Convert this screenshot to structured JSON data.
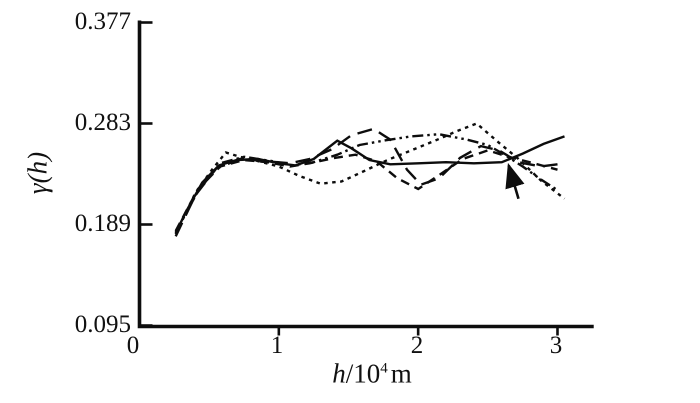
{
  "figure": {
    "background": "#ffffff",
    "line_color": "#0d0d0d"
  },
  "chart_data": {
    "type": "line",
    "title": "",
    "xlabel": "h/10⁴ m",
    "ylabel": "γ(h)",
    "xlabel_parts": {
      "symbol": "h",
      "divider": "/10",
      "exponent": "4",
      "unit": "m"
    },
    "xlim": [
      0,
      3.26
    ],
    "ylim": [
      0.095,
      0.377
    ],
    "grid": false,
    "legend": "none",
    "line_color": "#0d0d0d",
    "yticks": [
      {
        "label": "0.377",
        "value": 0.377
      },
      {
        "label": "0.283",
        "value": 0.283
      },
      {
        "label": "0.189",
        "value": 0.189
      },
      {
        "label": "0.095",
        "value": 0.095
      }
    ],
    "xticks": [
      {
        "label": "0",
        "value": 0
      },
      {
        "label": "1",
        "value": 1
      },
      {
        "label": "2",
        "value": 2
      },
      {
        "label": "3",
        "value": 3
      }
    ],
    "series": [
      {
        "name": "solid",
        "dash": "solid",
        "points": [
          [
            0.26,
            0.181
          ],
          [
            0.33,
            0.2
          ],
          [
            0.45,
            0.228
          ],
          [
            0.57,
            0.244
          ],
          [
            0.7,
            0.249
          ],
          [
            0.85,
            0.25
          ],
          [
            1.0,
            0.246
          ],
          [
            1.12,
            0.244
          ],
          [
            1.25,
            0.25
          ],
          [
            1.42,
            0.267
          ],
          [
            1.52,
            0.26
          ],
          [
            1.65,
            0.249
          ],
          [
            1.8,
            0.245
          ],
          [
            2.0,
            0.246
          ],
          [
            2.2,
            0.247
          ],
          [
            2.4,
            0.246
          ],
          [
            2.6,
            0.247
          ],
          [
            2.75,
            0.255
          ],
          [
            2.9,
            0.264
          ],
          [
            3.05,
            0.271
          ]
        ]
      },
      {
        "name": "long-dash",
        "dash": "long-dash",
        "points": [
          [
            0.26,
            0.178
          ],
          [
            0.4,
            0.216
          ],
          [
            0.55,
            0.241
          ],
          [
            0.72,
            0.25
          ],
          [
            0.9,
            0.248
          ],
          [
            1.08,
            0.246
          ],
          [
            1.22,
            0.25
          ],
          [
            1.38,
            0.259
          ],
          [
            1.52,
            0.272
          ],
          [
            1.68,
            0.278
          ],
          [
            1.8,
            0.268
          ],
          [
            1.92,
            0.24
          ],
          [
            2.02,
            0.226
          ],
          [
            2.15,
            0.232
          ],
          [
            2.3,
            0.251
          ],
          [
            2.45,
            0.262
          ],
          [
            2.58,
            0.258
          ],
          [
            2.72,
            0.247
          ],
          [
            2.88,
            0.243
          ],
          [
            3.0,
            0.245
          ]
        ]
      },
      {
        "name": "medium-dash",
        "dash": "medium-dash",
        "points": [
          [
            0.26,
            0.183
          ],
          [
            0.42,
            0.222
          ],
          [
            0.58,
            0.243
          ],
          [
            0.75,
            0.249
          ],
          [
            0.92,
            0.247
          ],
          [
            1.08,
            0.243
          ],
          [
            1.22,
            0.246
          ],
          [
            1.4,
            0.251
          ],
          [
            1.55,
            0.254
          ],
          [
            1.7,
            0.248
          ],
          [
            1.85,
            0.232
          ],
          [
            2.0,
            0.222
          ],
          [
            2.15,
            0.235
          ],
          [
            2.32,
            0.25
          ],
          [
            2.5,
            0.258
          ],
          [
            2.65,
            0.252
          ],
          [
            2.8,
            0.247
          ],
          [
            3.0,
            0.24
          ]
        ]
      },
      {
        "name": "short-dash",
        "dash": "short-dash",
        "points": [
          [
            0.26,
            0.18
          ],
          [
            0.4,
            0.218
          ],
          [
            0.52,
            0.24
          ],
          [
            0.62,
            0.256
          ],
          [
            0.72,
            0.252
          ],
          [
            0.85,
            0.248
          ],
          [
            1.0,
            0.243
          ],
          [
            1.15,
            0.234
          ],
          [
            1.3,
            0.227
          ],
          [
            1.45,
            0.229
          ],
          [
            1.6,
            0.238
          ],
          [
            1.78,
            0.249
          ],
          [
            1.95,
            0.258
          ],
          [
            2.12,
            0.267
          ],
          [
            2.28,
            0.276
          ],
          [
            2.42,
            0.283
          ],
          [
            2.58,
            0.265
          ],
          [
            2.72,
            0.25
          ],
          [
            2.88,
            0.23
          ],
          [
            3.05,
            0.213
          ]
        ]
      },
      {
        "name": "dash-dot-dot",
        "dash": "dash-dot-dot",
        "points": [
          [
            0.26,
            0.182
          ],
          [
            0.42,
            0.22
          ],
          [
            0.58,
            0.246
          ],
          [
            0.75,
            0.252
          ],
          [
            0.95,
            0.248
          ],
          [
            1.1,
            0.244
          ],
          [
            1.25,
            0.247
          ],
          [
            1.42,
            0.254
          ],
          [
            1.58,
            0.263
          ],
          [
            1.75,
            0.267
          ],
          [
            1.95,
            0.271
          ],
          [
            2.15,
            0.273
          ],
          [
            2.35,
            0.268
          ],
          [
            2.5,
            0.263
          ],
          [
            2.62,
            0.254
          ],
          [
            2.75,
            0.243
          ],
          [
            2.88,
            0.231
          ],
          [
            3.0,
            0.221
          ]
        ]
      }
    ],
    "annotations": [
      {
        "type": "arrow",
        "from": [
          2.72,
          0.213
        ],
        "to": [
          2.65,
          0.244
        ]
      }
    ]
  }
}
